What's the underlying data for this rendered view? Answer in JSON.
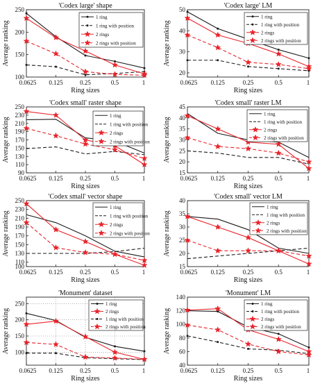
{
  "chart_data": [
    {
      "type": "line",
      "title": "'Codex large' shape",
      "xlabel": "Ring sizes",
      "ylabel": "Average ranking",
      "x_ticks": [
        "0.0625",
        "0.125",
        "0.25",
        "0.5",
        "1"
      ],
      "ylim": [
        100,
        250
      ],
      "y_ticks": [
        100,
        150,
        200,
        250
      ],
      "legend_position": "top-right",
      "grid": false,
      "series": [
        {
          "name": "1 ring",
          "style": "black-solid-dot",
          "values": [
            242,
            190,
            148,
            135,
            120
          ]
        },
        {
          "name": "1 ring with position",
          "style": "black-dash-dot",
          "values": [
            127,
            123,
            105,
            108,
            112
          ]
        },
        {
          "name": "2 rings",
          "style": "red-solid-star",
          "values": [
            231,
            188,
            158,
            127,
            107
          ]
        },
        {
          "name": "2 rings with position",
          "style": "red-dash-star",
          "values": [
            180,
            152,
            112,
            106,
            104
          ]
        }
      ]
    },
    {
      "type": "line",
      "title": "'Codex large' LM",
      "xlabel": "Ring sizes",
      "ylabel": "Average ranking",
      "x_ticks": [
        "0.0625",
        "0.125",
        "0.25",
        "0.5",
        "1"
      ],
      "ylim": [
        18,
        50
      ],
      "y_ticks": [
        20,
        30,
        40,
        50
      ],
      "legend_position": "top-right",
      "grid": false,
      "series": [
        {
          "name": "1 ring",
          "style": "black-solid-dot",
          "values": [
            49,
            41,
            36,
            31,
            27
          ]
        },
        {
          "name": "1 ring with position",
          "style": "black-dash-dot",
          "values": [
            26,
            26,
            23,
            22,
            21
          ]
        },
        {
          "name": "2 rings",
          "style": "red-solid-star",
          "values": [
            46,
            38,
            34,
            29,
            23
          ]
        },
        {
          "name": "2 rings with position",
          "style": "red-dash-star",
          "values": [
            38,
            32,
            25,
            24,
            22
          ]
        }
      ]
    },
    {
      "type": "line",
      "title": "'Codex small' raster shape",
      "xlabel": "Ring sizes",
      "ylabel": "Average ranking",
      "x_ticks": [
        "0.0625",
        "0.125",
        "0.25",
        "0.5",
        "1"
      ],
      "ylim": [
        90,
        250
      ],
      "y_ticks": [
        90,
        110,
        130,
        150,
        170,
        190,
        210,
        230,
        250
      ],
      "legend_position": "top-right",
      "grid": false,
      "series": [
        {
          "name": "1 ring",
          "style": "black-solid",
          "values": [
            219,
            220,
            175,
            167,
            138
          ]
        },
        {
          "name": "1 ring with position",
          "style": "black-dash",
          "values": [
            149,
            153,
            136,
            142,
            134
          ]
        },
        {
          "name": "2 rings",
          "style": "red-solid-star",
          "values": [
            239,
            230,
            170,
            156,
            110
          ]
        },
        {
          "name": "2 rings with position",
          "style": "red-dash-star",
          "values": [
            198,
            180,
            160,
            146,
            125
          ]
        }
      ]
    },
    {
      "type": "line",
      "title": "'Codex small' raster LM",
      "xlabel": "Ring sizes",
      "ylabel": "Average ranking",
      "x_ticks": [
        "0.0625",
        "0.125",
        "0.25",
        "0.5",
        "1"
      ],
      "ylim": [
        15,
        45
      ],
      "y_ticks": [
        15,
        20,
        25,
        30,
        35,
        40,
        45
      ],
      "legend_position": "top-right",
      "grid": false,
      "series": [
        {
          "name": "1 ring",
          "style": "black-solid",
          "values": [
            42,
            33,
            30,
            29,
            22
          ]
        },
        {
          "name": "1 ring with position",
          "style": "black-dash",
          "values": [
            25,
            24,
            22,
            22,
            19
          ]
        },
        {
          "name": "2 rings",
          "style": "red-solid-star",
          "values": [
            41,
            35,
            29,
            28,
            17
          ]
        },
        {
          "name": "2 rings with position",
          "style": "red-dash-star",
          "values": [
            31,
            27,
            26,
            24,
            20
          ]
        }
      ]
    },
    {
      "type": "line",
      "title": "'Codex small' vector shape",
      "xlabel": "Ring sizes",
      "ylabel": "Average ranking",
      "x_ticks": [
        "0.0625",
        "0.125",
        "0.25",
        "0.5",
        "1"
      ],
      "ylim": [
        100,
        250
      ],
      "y_ticks": [
        100,
        110,
        130,
        150,
        170,
        190,
        210,
        230,
        250
      ],
      "legend_position": "top-right",
      "grid": false,
      "series": [
        {
          "name": "1 ring",
          "style": "black-solid",
          "values": [
            218,
            200,
            170,
            135,
            122
          ]
        },
        {
          "name": "1 ring with position",
          "style": "black-dash",
          "values": [
            130,
            130,
            130,
            134,
            142
          ]
        },
        {
          "name": "2 rings",
          "style": "red-solid-star",
          "values": [
            243,
            184,
            157,
            128,
            103
          ]
        },
        {
          "name": "2 rings with position",
          "style": "red-dash-star",
          "values": [
            200,
            143,
            132,
            128,
            114
          ]
        }
      ]
    },
    {
      "type": "line",
      "title": "'Codex small' vector LM",
      "xlabel": "Ring sizes",
      "ylabel": "Average ranking",
      "x_ticks": [
        "0.0625",
        "0.125",
        "0.25",
        "0.5",
        "1"
      ],
      "ylim": [
        15,
        40
      ],
      "y_ticks": [
        15,
        20,
        25,
        30,
        35,
        40
      ],
      "legend_position": "top-right",
      "grid": false,
      "series": [
        {
          "name": "1 ring",
          "style": "black-solid",
          "values": [
            34,
            33,
            29,
            22,
            20
          ]
        },
        {
          "name": "1 ring with position",
          "style": "black-dash",
          "values": [
            18,
            19,
            20,
            21,
            22
          ]
        },
        {
          "name": "2 rings",
          "style": "red-solid-star",
          "values": [
            34,
            30,
            26,
            21,
            16
          ]
        },
        {
          "name": "2 rings with position",
          "style": "red-dash-star",
          "values": [
            25,
            21,
            21,
            21,
            19
          ]
        }
      ]
    },
    {
      "type": "line",
      "title": "'Monument' dataset",
      "xlabel": "Ring sizes",
      "ylabel": "Average ranking",
      "x_ticks": [
        "0.0625",
        "0.125",
        "0.25",
        "0.5",
        "1"
      ],
      "ylim": [
        60,
        270
      ],
      "y_ticks": [
        100,
        150,
        200,
        250
      ],
      "legend_position": "top-right",
      "grid": true,
      "series": [
        {
          "name": "1 ring",
          "style": "black-solid-dot",
          "values": [
            220,
            198,
            146,
            118,
            103
          ]
        },
        {
          "name": "2 rings",
          "style": "red-solid-star",
          "values": [
            186,
            196,
            148,
            100,
            78
          ]
        },
        {
          "name": "1 ring with position",
          "style": "black-dash-dot",
          "values": [
            97,
            97,
            83,
            80,
            77
          ]
        },
        {
          "name": "2 rings with position",
          "style": "red-dash-star",
          "values": [
            130,
            124,
            85,
            82,
            78
          ]
        }
      ]
    },
    {
      "type": "line",
      "title": "'Monument' LM",
      "xlabel": "Ring sizes",
      "ylabel": "Average ranking",
      "x_ticks": [
        "0.0625",
        "0.125",
        "0.25",
        "0.5",
        "1"
      ],
      "ylim": [
        40,
        140
      ],
      "y_ticks": [
        40,
        60,
        80,
        100,
        120,
        140
      ],
      "legend_position": "top-right",
      "grid": false,
      "series": [
        {
          "name": "1 ring",
          "style": "black-solid-dot",
          "values": [
            120,
            119,
            96,
            86,
            66
          ]
        },
        {
          "name": "1 ring with position",
          "style": "black-dash-dot",
          "values": [
            83,
            74,
            64,
            62,
            57
          ]
        },
        {
          "name": "2 rings",
          "style": "red-solid-star",
          "values": [
            121,
            123,
            92,
            78,
            60
          ]
        },
        {
          "name": "2 rings with position",
          "style": "red-dash-star",
          "values": [
            99,
            92,
            71,
            60,
            55
          ]
        }
      ]
    }
  ]
}
